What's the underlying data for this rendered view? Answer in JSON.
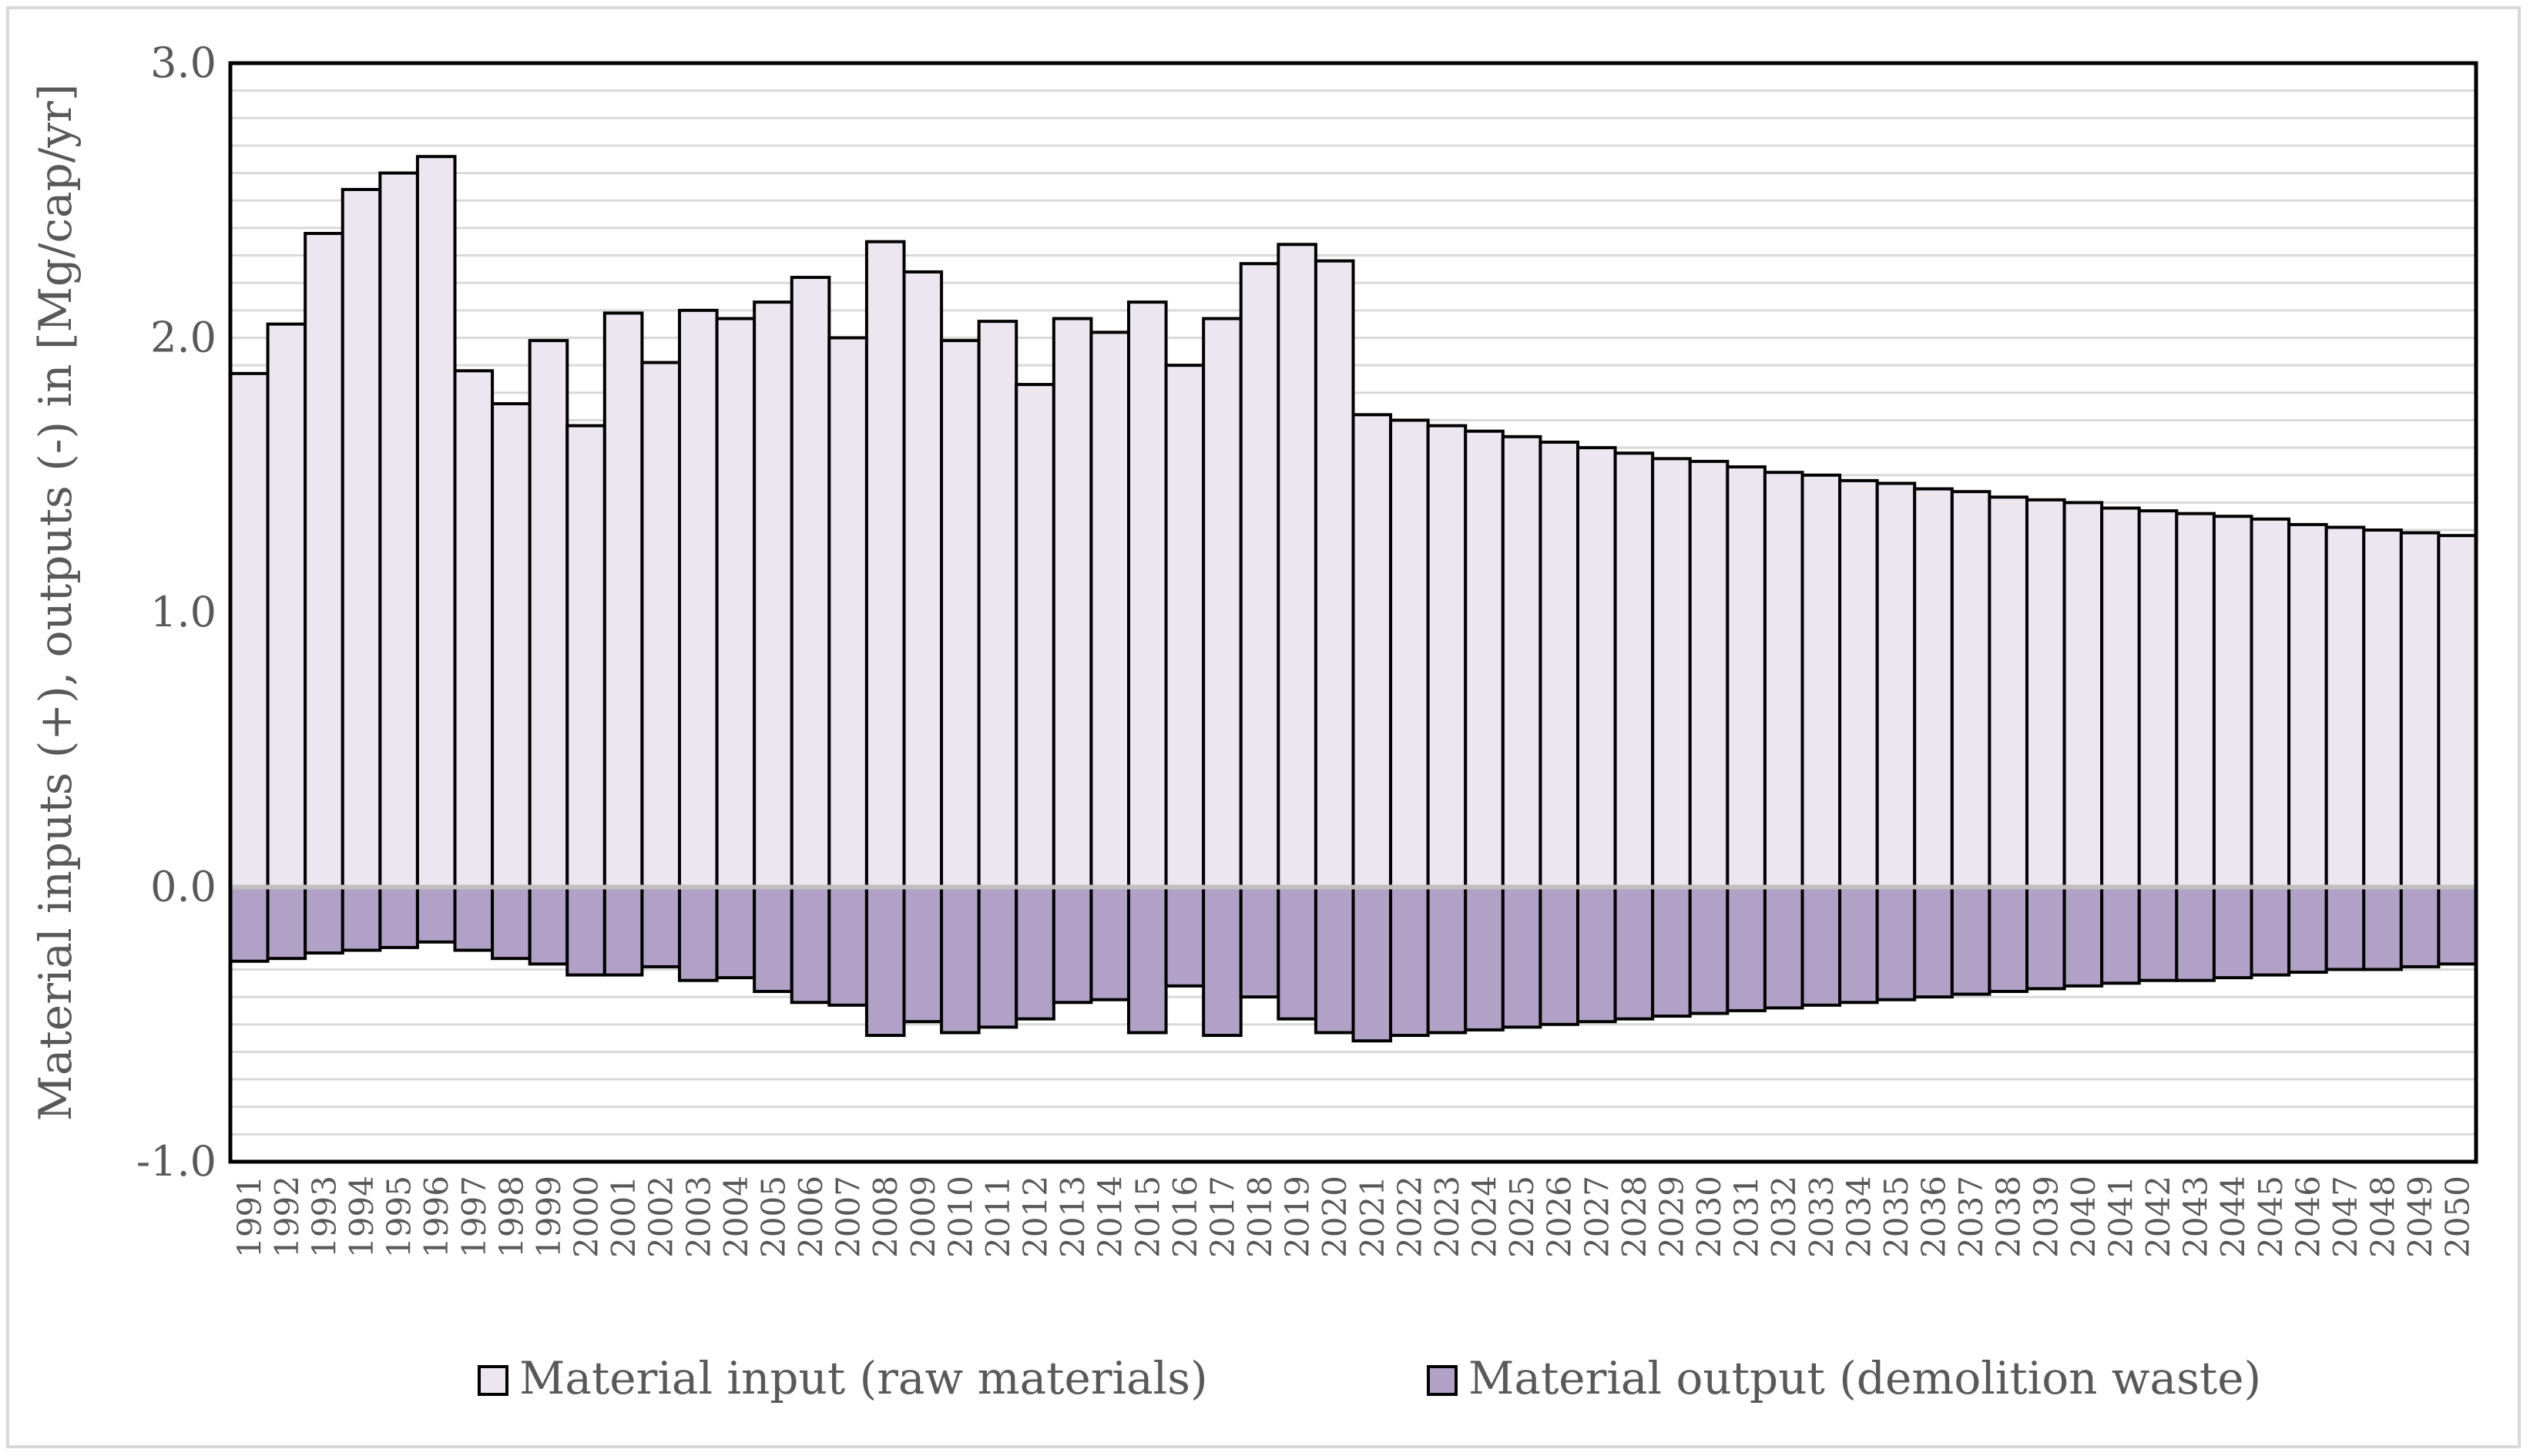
{
  "chart_data": {
    "type": "bar",
    "stacked": true,
    "categories": [
      "1991",
      "1992",
      "1993",
      "1994",
      "1995",
      "1996",
      "1997",
      "1998",
      "1999",
      "2000",
      "2001",
      "2002",
      "2003",
      "2004",
      "2005",
      "2006",
      "2007",
      "2008",
      "2009",
      "2010",
      "2011",
      "2012",
      "2013",
      "2014",
      "2015",
      "2016",
      "2017",
      "2018",
      "2019",
      "2020",
      "2021",
      "2022",
      "2023",
      "2024",
      "2025",
      "2026",
      "2027",
      "2028",
      "2029",
      "2030",
      "2031",
      "2032",
      "2033",
      "2034",
      "2035",
      "2036",
      "2037",
      "2038",
      "2039",
      "2040",
      "2041",
      "2042",
      "2043",
      "2044",
      "2045",
      "2046",
      "2047",
      "2048",
      "2049",
      "2050"
    ],
    "series": [
      {
        "name": "Material input (raw materials)",
        "color": "#ebe6f0",
        "values": [
          1.87,
          2.05,
          2.38,
          2.54,
          2.6,
          2.66,
          1.88,
          1.76,
          1.99,
          1.68,
          2.09,
          1.91,
          2.1,
          2.07,
          2.13,
          2.22,
          2.0,
          2.35,
          2.24,
          1.99,
          2.06,
          1.83,
          2.07,
          2.02,
          2.13,
          1.9,
          2.07,
          2.27,
          2.34,
          2.28,
          1.72,
          1.7,
          1.68,
          1.66,
          1.64,
          1.62,
          1.6,
          1.58,
          1.56,
          1.55,
          1.53,
          1.51,
          1.5,
          1.48,
          1.47,
          1.45,
          1.44,
          1.42,
          1.41,
          1.4,
          1.38,
          1.37,
          1.36,
          1.35,
          1.34,
          1.32,
          1.31,
          1.3,
          1.29,
          1.28
        ]
      },
      {
        "name": "Material output (demolition waste)",
        "color": "#b1a1c7",
        "values": [
          -0.27,
          -0.26,
          -0.24,
          -0.23,
          -0.22,
          -0.2,
          -0.23,
          -0.26,
          -0.28,
          -0.32,
          -0.32,
          -0.29,
          -0.34,
          -0.33,
          -0.38,
          -0.42,
          -0.43,
          -0.54,
          -0.49,
          -0.53,
          -0.51,
          -0.48,
          -0.42,
          -0.41,
          -0.53,
          -0.36,
          -0.54,
          -0.4,
          -0.48,
          -0.53,
          -0.56,
          -0.54,
          -0.53,
          -0.52,
          -0.51,
          -0.5,
          -0.49,
          -0.48,
          -0.47,
          -0.46,
          -0.45,
          -0.44,
          -0.43,
          -0.42,
          -0.41,
          -0.4,
          -0.39,
          -0.38,
          -0.37,
          -0.36,
          -0.35,
          -0.34,
          -0.34,
          -0.33,
          -0.32,
          -0.31,
          -0.3,
          -0.3,
          -0.29,
          -0.28
        ]
      }
    ],
    "ylabel": "Material inputs (+), outputs (-) in [Mg/cap/yr]",
    "xlabel": "",
    "ylim": [
      -1.0,
      3.0
    ],
    "yticks": [
      "3.0",
      "2.0",
      "1.0",
      "0.0",
      "-1.0"
    ],
    "ytick_values": [
      3.0,
      2.0,
      1.0,
      0.0,
      -1.0
    ],
    "grid": true,
    "legend_position": "bottom",
    "colors": {
      "gridline": "#d9d9d9",
      "zero_line": "#bfbfbf",
      "bar_edge": "#000000",
      "text": "#595959"
    }
  }
}
